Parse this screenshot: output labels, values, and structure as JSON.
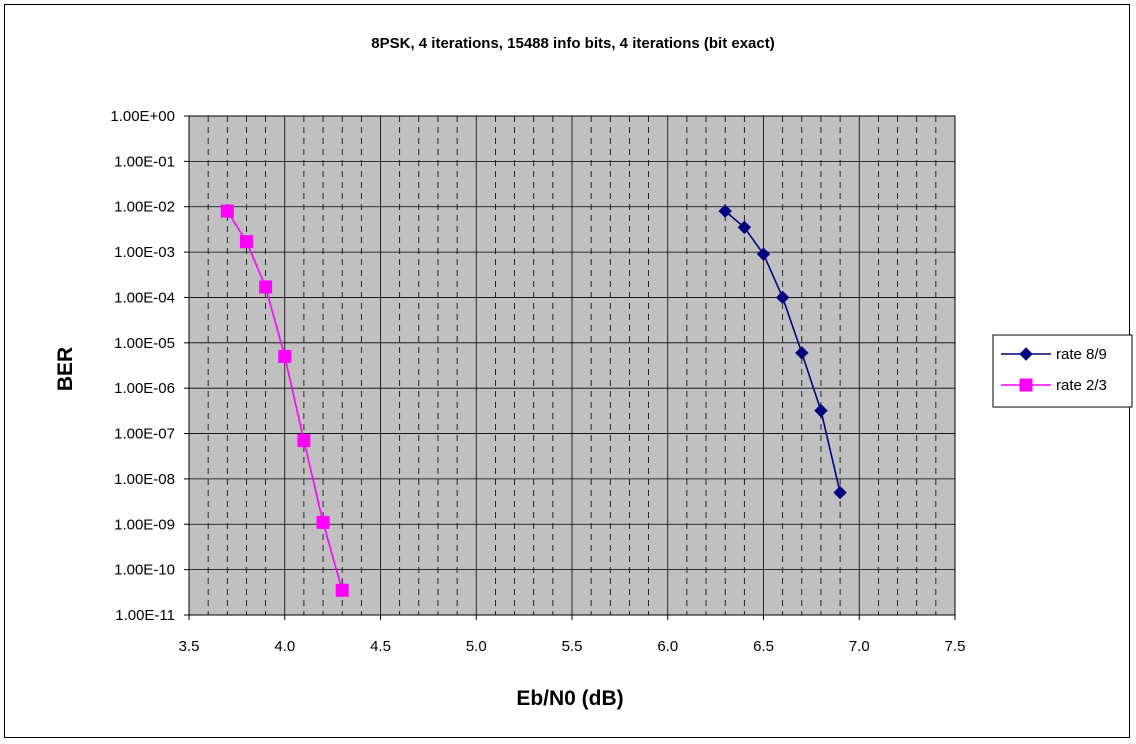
{
  "chart_data": {
    "type": "line",
    "title": "8PSK, 4 iterations, 15488 info bits, 4 iterations (bit exact)",
    "xlabel": "Eb/N0 (dB)",
    "ylabel": "BER",
    "xlim": [
      3.5,
      7.5
    ],
    "ylim": [
      1e-11,
      1
    ],
    "yscale": "log",
    "grid": true,
    "minor_x_grid": true,
    "legend_position": "right",
    "plot_background": "#c0c0c0",
    "x_ticks": [
      "3.5",
      "4.0",
      "4.5",
      "5.0",
      "5.5",
      "6.0",
      "6.5",
      "7.0",
      "7.5"
    ],
    "y_ticks": [
      "1.00E+00",
      "1.00E-01",
      "1.00E-02",
      "1.00E-03",
      "1.00E-04",
      "1.00E-05",
      "1.00E-06",
      "1.00E-07",
      "1.00E-08",
      "1.00E-09",
      "1.00E-10",
      "1.00E-11"
    ],
    "series": [
      {
        "name": "rate 8/9",
        "color": "#000080",
        "marker": "diamond",
        "x": [
          6.3,
          6.4,
          6.5,
          6.6,
          6.7,
          6.8,
          6.9
        ],
        "y": [
          0.008,
          0.0035,
          0.0009,
          0.0001,
          6e-06,
          3.2e-07,
          5e-09
        ]
      },
      {
        "name": "rate 2/3",
        "color": "#ff00ff",
        "marker": "square",
        "x": [
          3.7,
          3.8,
          3.9,
          4.0,
          4.1,
          4.2,
          4.3
        ],
        "y": [
          0.008,
          0.0017,
          0.00017,
          5e-06,
          7e-08,
          1.1e-09,
          3.5e-11
        ]
      }
    ]
  }
}
